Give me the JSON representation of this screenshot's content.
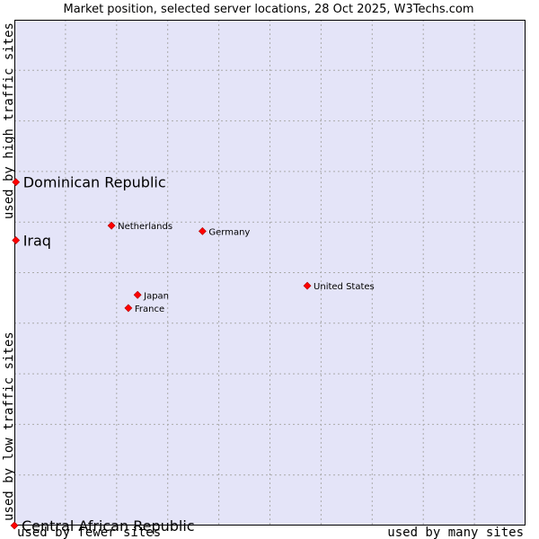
{
  "chart_data": {
    "type": "scatter",
    "title": "Market position, selected server locations, 28 Oct 2025, W3Techs.com",
    "xlabel_left": "used by fewer sites",
    "xlabel_right": "used by many sites",
    "ylabel_top": "used by high traffic sites",
    "ylabel_bottom": "used by low traffic sites",
    "xlim": [
      0,
      100
    ],
    "ylim": [
      0,
      100
    ],
    "grid": true,
    "marker_color": "#ff0000",
    "plot_background": "#e4e4f8",
    "points": [
      {
        "name": "Dominican Republic",
        "x": 0.3,
        "y": 67.9,
        "emphasis": true
      },
      {
        "name": "Iraq",
        "x": 0.3,
        "y": 56.4,
        "emphasis": true
      },
      {
        "name": "Netherlands",
        "x": 19.0,
        "y": 59.3,
        "emphasis": false
      },
      {
        "name": "Germany",
        "x": 36.8,
        "y": 58.2,
        "emphasis": false
      },
      {
        "name": "United States",
        "x": 57.3,
        "y": 47.4,
        "emphasis": false
      },
      {
        "name": "Japan",
        "x": 24.1,
        "y": 45.6,
        "emphasis": false
      },
      {
        "name": "France",
        "x": 22.3,
        "y": 43.0,
        "emphasis": false
      },
      {
        "name": "Central African Republic",
        "x": 0.0,
        "y": 0.0,
        "emphasis": true
      }
    ]
  }
}
